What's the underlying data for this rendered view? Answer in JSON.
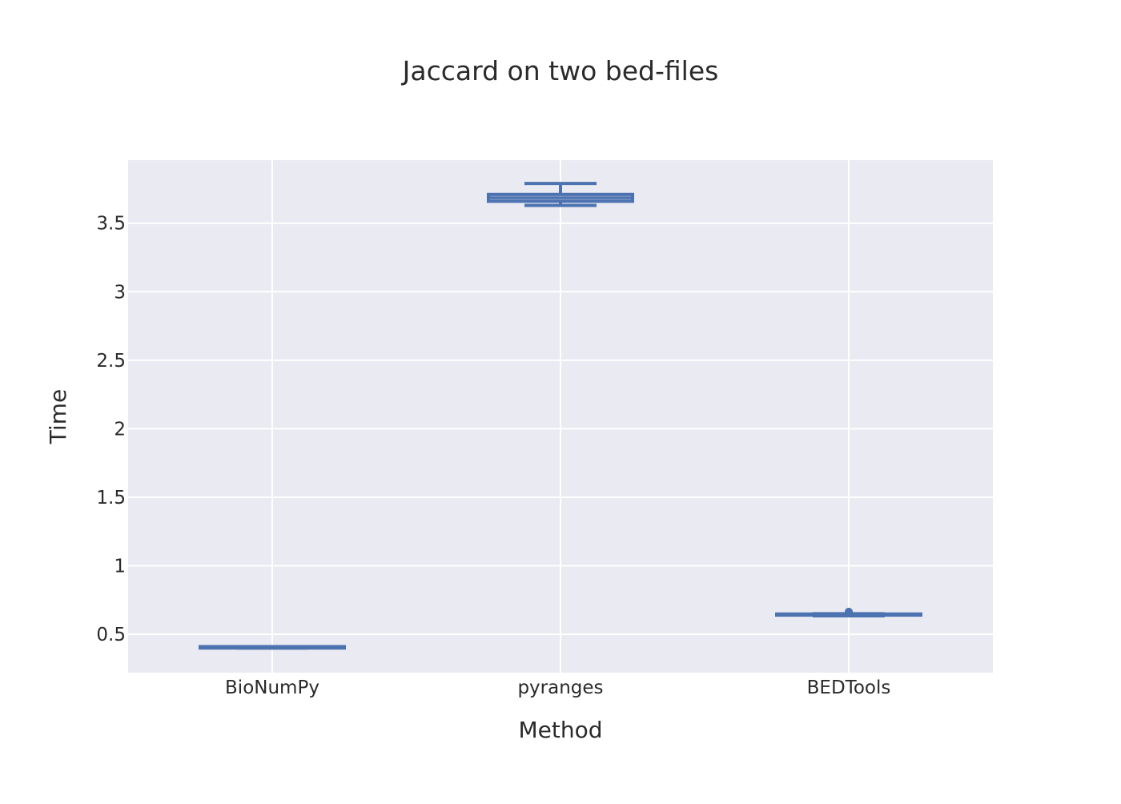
{
  "chart_data": {
    "type": "box",
    "title": "Jaccard on two bed-files",
    "xlabel": "Method",
    "ylabel": "Time",
    "categories": [
      "BioNumPy",
      "pyranges",
      "BEDTools"
    ],
    "ylim": [
      0.22,
      3.96
    ],
    "yticks": [
      0.5,
      1,
      1.5,
      2,
      2.5,
      3,
      3.5
    ],
    "ytick_labels": [
      "0.5",
      "1",
      "1.5",
      "2",
      "2.5",
      "3",
      "3.5"
    ],
    "grid": true,
    "boxes": [
      {
        "category": "BioNumPy",
        "min": 0.4,
        "q1": 0.4,
        "median": 0.405,
        "q3": 0.41,
        "max": 0.41,
        "outliers": []
      },
      {
        "category": "pyranges",
        "min": 3.63,
        "q1": 3.66,
        "median": 3.685,
        "q3": 3.71,
        "max": 3.79,
        "outliers": []
      },
      {
        "category": "BEDTools",
        "min": 0.635,
        "q1": 0.64,
        "median": 0.643,
        "q3": 0.648,
        "max": 0.65,
        "outliers": [
          0.665
        ]
      }
    ],
    "colors": {
      "box": "#4c72b0",
      "plot_bg": "#eaeaf2",
      "grid": "#ffffff"
    }
  }
}
